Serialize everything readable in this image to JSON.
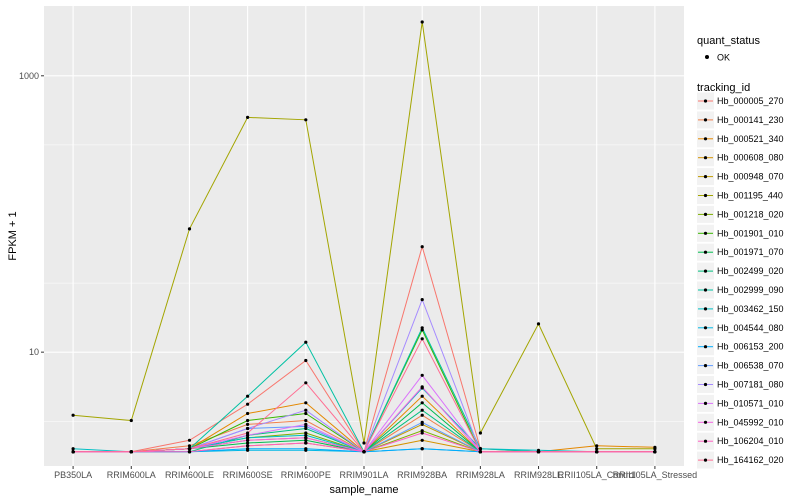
{
  "chart_data": {
    "type": "line",
    "xlabel": "sample_name",
    "ylabel": "FPKM + 1",
    "y_scale": "log10",
    "ylim": [
      1.5,
      3200
    ],
    "y_ticks": [
      {
        "value": 1000,
        "label": "1000"
      },
      {
        "value": 10,
        "label": "10"
      }
    ],
    "x": [
      "PB350LA",
      "RRIM600LA",
      "RRIM600LE",
      "RRIM600SE",
      "RRIM600PE",
      "RRIM901LA",
      "RRIM928BA",
      "RRIM928LA",
      "RRIM928LE",
      "RRII105LA_Control",
      "RRII105LA_Stressed"
    ],
    "grid": true,
    "legend_position": "right",
    "quant_legend": {
      "title": "quant_status",
      "entries": [
        "OK"
      ]
    },
    "legend_title": "tracking_id",
    "series": [
      {
        "name": "Hb_000005_270",
        "color": "#F8766D",
        "values": [
          1.9,
          1.9,
          2.3,
          4.2,
          8.7,
          1.9,
          58.0,
          2.0,
          1.9,
          1.9,
          1.9
        ]
      },
      {
        "name": "Hb_000141_230",
        "color": "#F07F4B",
        "values": [
          1.9,
          1.9,
          2.1,
          3.0,
          3.2,
          1.9,
          3.5,
          1.9,
          1.9,
          1.9,
          1.9
        ]
      },
      {
        "name": "Hb_000521_340",
        "color": "#E48800",
        "values": [
          1.9,
          1.9,
          2.0,
          3.6,
          4.3,
          1.9,
          4.8,
          1.9,
          1.9,
          2.1,
          2.05
        ]
      },
      {
        "name": "Hb_000608_080",
        "color": "#D49200",
        "values": [
          1.9,
          1.9,
          1.9,
          2.1,
          2.2,
          1.9,
          2.3,
          1.9,
          1.9,
          1.9,
          1.9
        ]
      },
      {
        "name": "Hb_000948_070",
        "color": "#C09B00",
        "values": [
          1.9,
          1.9,
          2.0,
          2.3,
          2.4,
          1.9,
          3.0,
          1.9,
          1.9,
          1.9,
          1.9
        ]
      },
      {
        "name": "Hb_001195_440",
        "color": "#A3A500",
        "values": [
          3.5,
          3.2,
          78.0,
          500.0,
          480.0,
          2.2,
          2450.0,
          2.6,
          16.0,
          2.0,
          2.0
        ]
      },
      {
        "name": "Hb_001218_020",
        "color": "#7DAE00",
        "values": [
          1.9,
          1.9,
          2.0,
          2.4,
          2.6,
          1.9,
          2.7,
          1.9,
          1.9,
          1.9,
          1.9
        ]
      },
      {
        "name": "Hb_001901_010",
        "color": "#39B600",
        "values": [
          1.9,
          1.9,
          2.0,
          3.2,
          3.6,
          1.9,
          14.5,
          1.9,
          1.9,
          1.9,
          1.9
        ]
      },
      {
        "name": "Hb_001971_070",
        "color": "#00BB4E",
        "values": [
          1.9,
          1.9,
          2.0,
          2.2,
          2.3,
          1.9,
          4.3,
          1.9,
          1.9,
          1.9,
          1.9
        ]
      },
      {
        "name": "Hb_002499_020",
        "color": "#00BF7D",
        "values": [
          1.9,
          1.9,
          1.9,
          2.5,
          2.8,
          1.9,
          3.8,
          1.9,
          1.9,
          1.9,
          1.9
        ]
      },
      {
        "name": "Hb_002999_090",
        "color": "#00C1A3",
        "values": [
          1.9,
          1.9,
          2.0,
          4.8,
          11.8,
          1.9,
          15.0,
          2.0,
          1.9,
          1.9,
          1.9
        ]
      },
      {
        "name": "Hb_003462_150",
        "color": "#00BFC4",
        "values": [
          2.0,
          1.9,
          2.0,
          2.4,
          2.5,
          1.9,
          5.5,
          2.0,
          1.95,
          1.9,
          1.9
        ]
      },
      {
        "name": "Hb_004544_080",
        "color": "#00B8E5",
        "values": [
          1.9,
          1.9,
          1.9,
          1.95,
          1.95,
          1.9,
          2.0,
          1.9,
          1.9,
          1.9,
          1.9
        ]
      },
      {
        "name": "Hb_006153_200",
        "color": "#00ABFD",
        "values": [
          1.9,
          1.9,
          1.9,
          2.0,
          2.0,
          1.9,
          2.0,
          1.9,
          1.9,
          1.9,
          1.9
        ]
      },
      {
        "name": "Hb_006538_070",
        "color": "#619CFF",
        "values": [
          1.9,
          1.9,
          2.0,
          2.8,
          2.9,
          1.9,
          3.1,
          1.9,
          1.9,
          1.9,
          1.9
        ]
      },
      {
        "name": "Hb_007181_080",
        "color": "#A58AFF",
        "values": [
          1.9,
          1.9,
          2.0,
          2.8,
          3.8,
          1.9,
          24.0,
          1.9,
          1.9,
          1.9,
          1.9
        ]
      },
      {
        "name": "Hb_010571_010",
        "color": "#DB72FB",
        "values": [
          1.9,
          1.9,
          2.0,
          2.5,
          3.0,
          1.9,
          6.8,
          1.9,
          1.9,
          1.9,
          1.9
        ]
      },
      {
        "name": "Hb_045992_010",
        "color": "#F564E3",
        "values": [
          1.9,
          1.9,
          2.0,
          2.3,
          2.4,
          1.9,
          5.6,
          1.9,
          1.9,
          1.9,
          1.9
        ]
      },
      {
        "name": "Hb_106204_010",
        "color": "#FF61C3",
        "values": [
          1.9,
          1.9,
          1.9,
          2.1,
          2.2,
          1.9,
          2.6,
          1.9,
          1.9,
          1.9,
          1.9
        ]
      },
      {
        "name": "Hb_164162_020",
        "color": "#FF6C91",
        "values": [
          1.9,
          1.9,
          2.0,
          2.6,
          6.0,
          1.9,
          12.5,
          1.9,
          1.9,
          1.9,
          1.9
        ]
      }
    ]
  }
}
